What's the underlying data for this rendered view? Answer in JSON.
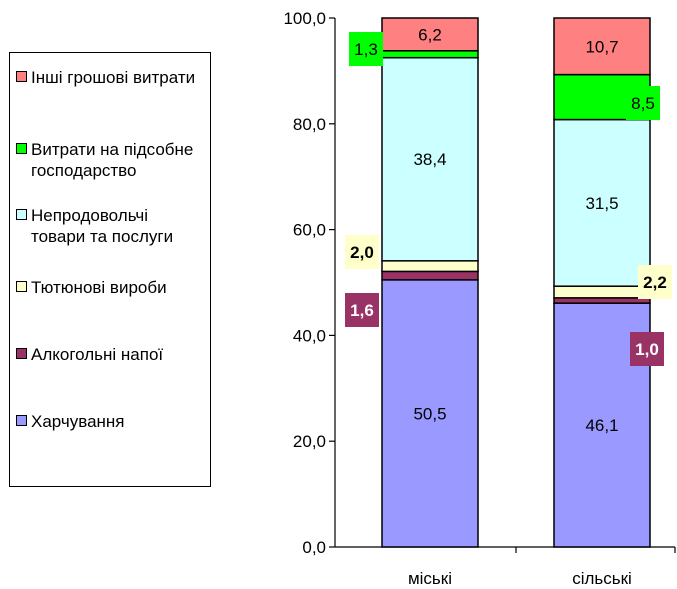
{
  "chart_data": {
    "type": "bar",
    "stacked": true,
    "categories": [
      "міські",
      "сільські"
    ],
    "ylim": [
      0,
      100
    ],
    "yticks": [
      "0,0",
      "20,0",
      "40,0",
      "60,0",
      "80,0",
      "100,0"
    ],
    "legend_position": "left",
    "series": [
      {
        "name": "Харчування",
        "values": [
          50.5,
          46.1
        ],
        "labels": [
          "50,5",
          "46,1"
        ],
        "color": "#9999ff"
      },
      {
        "name": "Алкогольні напої",
        "values": [
          1.6,
          1.0
        ],
        "labels": [
          "1,6",
          "1,0"
        ],
        "color": "#993366"
      },
      {
        "name": "Тютюнові вироби",
        "values": [
          2.0,
          2.2
        ],
        "labels": [
          "2,0",
          "2,2"
        ],
        "color": "#ffffcc"
      },
      {
        "name": "Непродовольчі товари та послуги",
        "values": [
          38.4,
          31.5
        ],
        "labels": [
          "38,4",
          "31,5"
        ],
        "color": "#ccffff"
      },
      {
        "name": "Витрати на підсобне господарство",
        "values": [
          1.3,
          8.5
        ],
        "labels": [
          "1,3",
          "8,5"
        ],
        "color": "#00ff00"
      },
      {
        "name": "Інші грошові витрати",
        "values": [
          6.2,
          10.7
        ],
        "labels": [
          "6,2",
          "10,7"
        ],
        "color": "#ff8080"
      }
    ]
  },
  "legend": {
    "items": [
      {
        "label": "Інші грошові витрати",
        "color": "#ff8080"
      },
      {
        "label": "Витрати на підсобне господарство",
        "color": "#00ff00"
      },
      {
        "label": "Непродовольчі товари та послуги",
        "color": "#ccffff"
      },
      {
        "label": "Тютюнові вироби",
        "color": "#ffffcc"
      },
      {
        "label": "Алкогольні напої",
        "color": "#993366"
      },
      {
        "label": "Харчування",
        "color": "#9999ff"
      }
    ]
  }
}
